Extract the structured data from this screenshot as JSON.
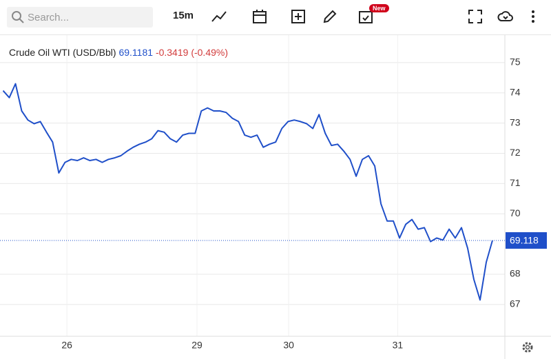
{
  "toolbar": {
    "search_placeholder": "Search...",
    "interval": "15m",
    "badge": "New"
  },
  "chart_data": {
    "type": "line",
    "title": "Crude Oil WTI (USD/Bbl)",
    "price": "69.1181",
    "change": "-0.3419",
    "change_pct": "(-0.49%)",
    "series": [
      {
        "name": "Crude Oil WTI",
        "color": "#1f4fc9",
        "values": [
          74.07,
          73.84,
          74.3,
          73.4,
          73.1,
          72.98,
          73.05,
          72.7,
          72.37,
          71.35,
          71.7,
          71.8,
          71.76,
          71.85,
          71.76,
          71.8,
          71.7,
          71.8,
          71.85,
          71.92,
          72.07,
          72.2,
          72.3,
          72.37,
          72.48,
          72.75,
          72.7,
          72.48,
          72.37,
          72.6,
          72.66,
          72.66,
          73.4,
          73.5,
          73.4,
          73.4,
          73.35,
          73.16,
          73.05,
          72.6,
          72.53,
          72.6,
          72.2,
          72.3,
          72.37,
          72.82,
          73.05,
          73.1,
          73.05,
          72.98,
          72.82,
          73.28,
          72.66,
          72.26,
          72.3,
          72.07,
          71.8,
          71.24,
          71.8,
          71.92,
          71.58,
          70.33,
          69.76,
          69.76,
          69.2,
          69.65,
          69.81,
          69.49,
          69.54,
          69.08,
          69.2,
          69.13,
          69.49,
          69.2,
          69.54,
          68.86,
          67.83,
          67.15,
          68.4,
          69.12
        ]
      }
    ],
    "xlim": [
      -0.5,
      81
    ],
    "xticks": [
      {
        "value": 10.3,
        "label": "26"
      },
      {
        "value": 31.3,
        "label": "29"
      },
      {
        "value": 46.1,
        "label": "30"
      },
      {
        "value": 63.7,
        "label": "31"
      }
    ],
    "ylim": [
      65.95,
      75.93
    ],
    "yticks": [
      67,
      68,
      70,
      71,
      72,
      73,
      74,
      75
    ],
    "grid": true,
    "price_line": {
      "value": 69.118,
      "label": "69.118"
    }
  }
}
